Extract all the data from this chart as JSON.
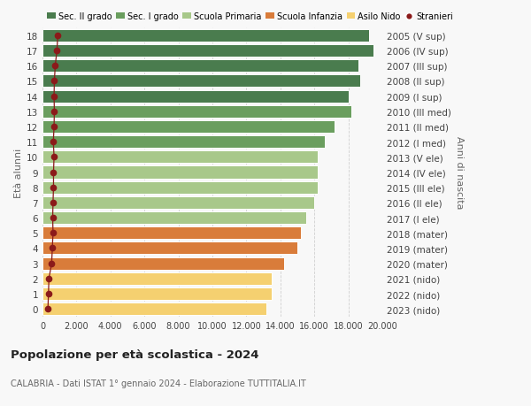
{
  "ages": [
    18,
    17,
    16,
    15,
    14,
    13,
    12,
    11,
    10,
    9,
    8,
    7,
    6,
    5,
    4,
    3,
    2,
    1,
    0
  ],
  "right_labels": [
    "2005 (V sup)",
    "2006 (IV sup)",
    "2007 (III sup)",
    "2008 (II sup)",
    "2009 (I sup)",
    "2010 (III med)",
    "2011 (II med)",
    "2012 (I med)",
    "2013 (V ele)",
    "2014 (IV ele)",
    "2015 (III ele)",
    "2016 (II ele)",
    "2017 (I ele)",
    "2018 (mater)",
    "2019 (mater)",
    "2020 (mater)",
    "2021 (nido)",
    "2022 (nido)",
    "2023 (nido)"
  ],
  "bar_values": [
    19200,
    19500,
    18600,
    18700,
    18000,
    18200,
    17200,
    16600,
    16200,
    16200,
    16200,
    16000,
    15500,
    15200,
    15000,
    14200,
    13500,
    13500,
    13200
  ],
  "stranieri_values": [
    900,
    850,
    750,
    700,
    680,
    700,
    680,
    640,
    680,
    650,
    650,
    620,
    600,
    620,
    580,
    540,
    380,
    350,
    320
  ],
  "bar_colors": [
    "#4a7c4e",
    "#4a7c4e",
    "#4a7c4e",
    "#4a7c4e",
    "#4a7c4e",
    "#6a9e5e",
    "#6a9e5e",
    "#6a9e5e",
    "#a8c88a",
    "#a8c88a",
    "#a8c88a",
    "#a8c88a",
    "#a8c88a",
    "#d97c3a",
    "#d97c3a",
    "#d97c3a",
    "#f5d070",
    "#f5d070",
    "#f5d070"
  ],
  "stranieri_color": "#8b1a1a",
  "title": "Popolazione per età scolastica - 2024",
  "subtitle": "CALABRIA - Dati ISTAT 1° gennaio 2024 - Elaborazione TUTTITALIA.IT",
  "ylabel": "Età alunni",
  "ylabel2": "Anni di nascita",
  "xlim": [
    0,
    20000
  ],
  "xticks": [
    0,
    2000,
    4000,
    6000,
    8000,
    10000,
    12000,
    14000,
    16000,
    18000,
    20000
  ],
  "legend_labels": [
    "Sec. II grado",
    "Sec. I grado",
    "Scuola Primaria",
    "Scuola Infanzia",
    "Asilo Nido",
    "Stranieri"
  ],
  "legend_colors": [
    "#4a7c4e",
    "#6a9e5e",
    "#a8c88a",
    "#d97c3a",
    "#f5d070",
    "#8b1a1a"
  ],
  "background_color": "#f8f8f8",
  "grid_color": "#d0d0d0"
}
